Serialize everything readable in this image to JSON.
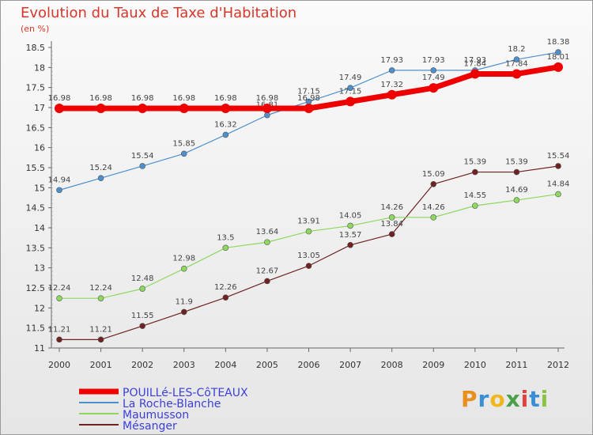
{
  "title": "Evolution du Taux de Taxe d'Habitation",
  "subtitle": "(en %)",
  "logo": "Proxiti",
  "chart_data": {
    "type": "line",
    "x": [
      "2000",
      "2001",
      "2002",
      "2003",
      "2004",
      "2005",
      "2006",
      "2007",
      "2008",
      "2009",
      "2010",
      "2011",
      "2012"
    ],
    "ylim": [
      11,
      18.5
    ],
    "yticks": [
      11,
      11.5,
      12,
      12.5,
      13,
      13.5,
      14,
      14.5,
      15,
      15.5,
      16,
      16.5,
      17,
      17.5,
      18,
      18.5
    ],
    "grid": false,
    "legend_position": "bottom-left",
    "series": [
      {
        "name": "POUILLé-LES-CôTEAUX",
        "color": "#ee0000",
        "values": [
          16.98,
          16.98,
          16.98,
          16.98,
          16.98,
          16.98,
          16.98,
          17.15,
          17.32,
          17.49,
          17.84,
          17.84,
          18.01
        ]
      },
      {
        "name": "La Roche-Blanche",
        "color": "#4d8fcc",
        "values": [
          14.94,
          15.24,
          15.54,
          15.85,
          16.32,
          16.81,
          17.15,
          17.49,
          17.93,
          17.93,
          17.93,
          18.2,
          18.38
        ]
      },
      {
        "name": "Maumusson",
        "color": "#8ed85f",
        "values": [
          12.24,
          12.24,
          12.48,
          12.98,
          13.5,
          13.64,
          13.91,
          14.05,
          14.26,
          14.26,
          14.55,
          14.69,
          14.84
        ]
      },
      {
        "name": "Mésanger",
        "color": "#6e2222",
        "values": [
          11.21,
          11.21,
          11.55,
          11.9,
          12.26,
          12.67,
          13.05,
          13.57,
          13.84,
          15.09,
          15.39,
          15.39,
          15.54
        ]
      }
    ]
  }
}
